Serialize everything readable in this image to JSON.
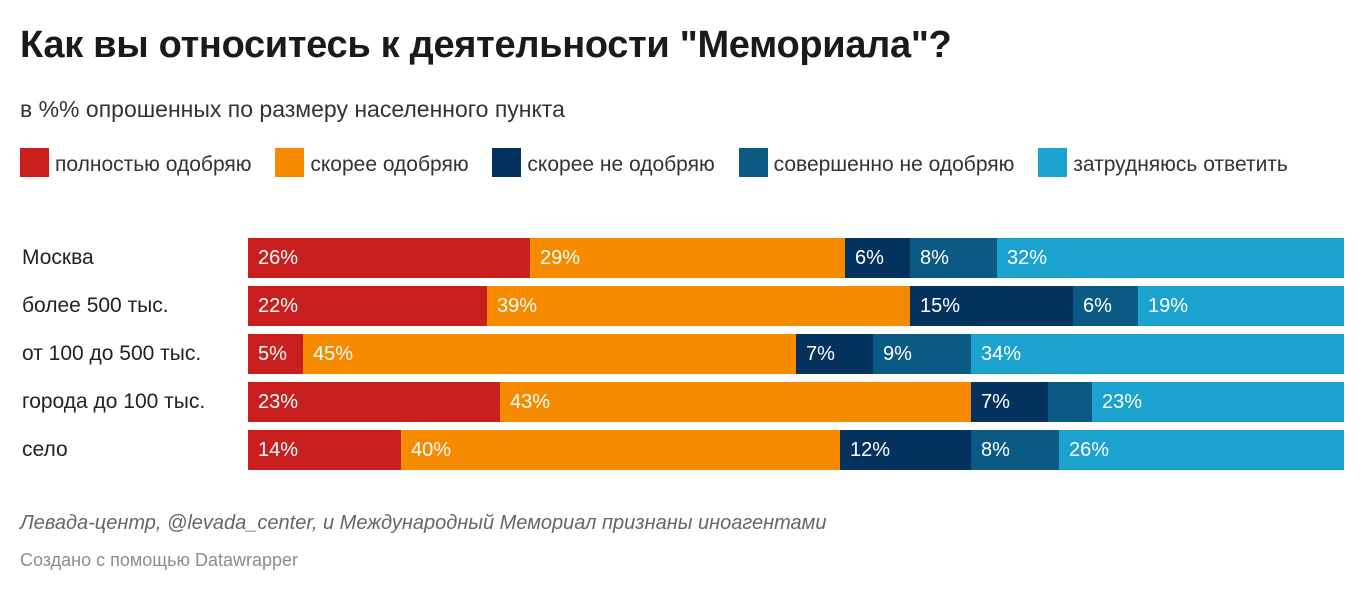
{
  "title": "Как вы относитесь к деятельности \"Мемориала\"?",
  "subtitle": "в %% опрошенных по размеру населенного пункта",
  "note": "Левада-центр, @levada_center, и Международный Мемориал признаны иноагентами",
  "credit": "Создано с помощью Datawrapper",
  "chart_data": {
    "type": "bar",
    "orientation": "horizontal",
    "stacked": true,
    "legend_placement": "top",
    "grid": false,
    "xlim": [
      0,
      100
    ],
    "categories": [
      "Москва",
      "более 500 тыс.",
      "от 100 до 500 тыс.",
      "города до 100 тыс.",
      "село"
    ],
    "series": [
      {
        "name": "полностью одобряю",
        "color": "#c91f1f",
        "values": [
          26,
          22,
          5,
          23,
          14
        ],
        "labels": [
          "26%",
          "22%",
          "5%",
          "23%",
          "14%"
        ]
      },
      {
        "name": "скорее одобряю",
        "color": "#f78b00",
        "values": [
          29,
          39,
          45,
          43,
          40
        ],
        "labels": [
          "29%",
          "39%",
          "45%",
          "43%",
          "40%"
        ]
      },
      {
        "name": "скорее не одобряю",
        "color": "#04325f",
        "values": [
          6,
          15,
          7,
          7,
          12
        ],
        "labels": [
          "6%",
          "15%",
          "7%",
          "7%",
          "12%"
        ]
      },
      {
        "name": "совершенно не одобряю",
        "color": "#0b5a84",
        "values": [
          8,
          6,
          9,
          4,
          8
        ],
        "labels": [
          "8%",
          "6%",
          "9%",
          "",
          "8%"
        ]
      },
      {
        "name": "затрудняюсь ответить",
        "color": "#1ca2cf",
        "values": [
          32,
          19,
          34,
          23,
          26
        ],
        "labels": [
          "32%",
          "19%",
          "34%",
          "23%",
          "26%"
        ]
      }
    ]
  }
}
